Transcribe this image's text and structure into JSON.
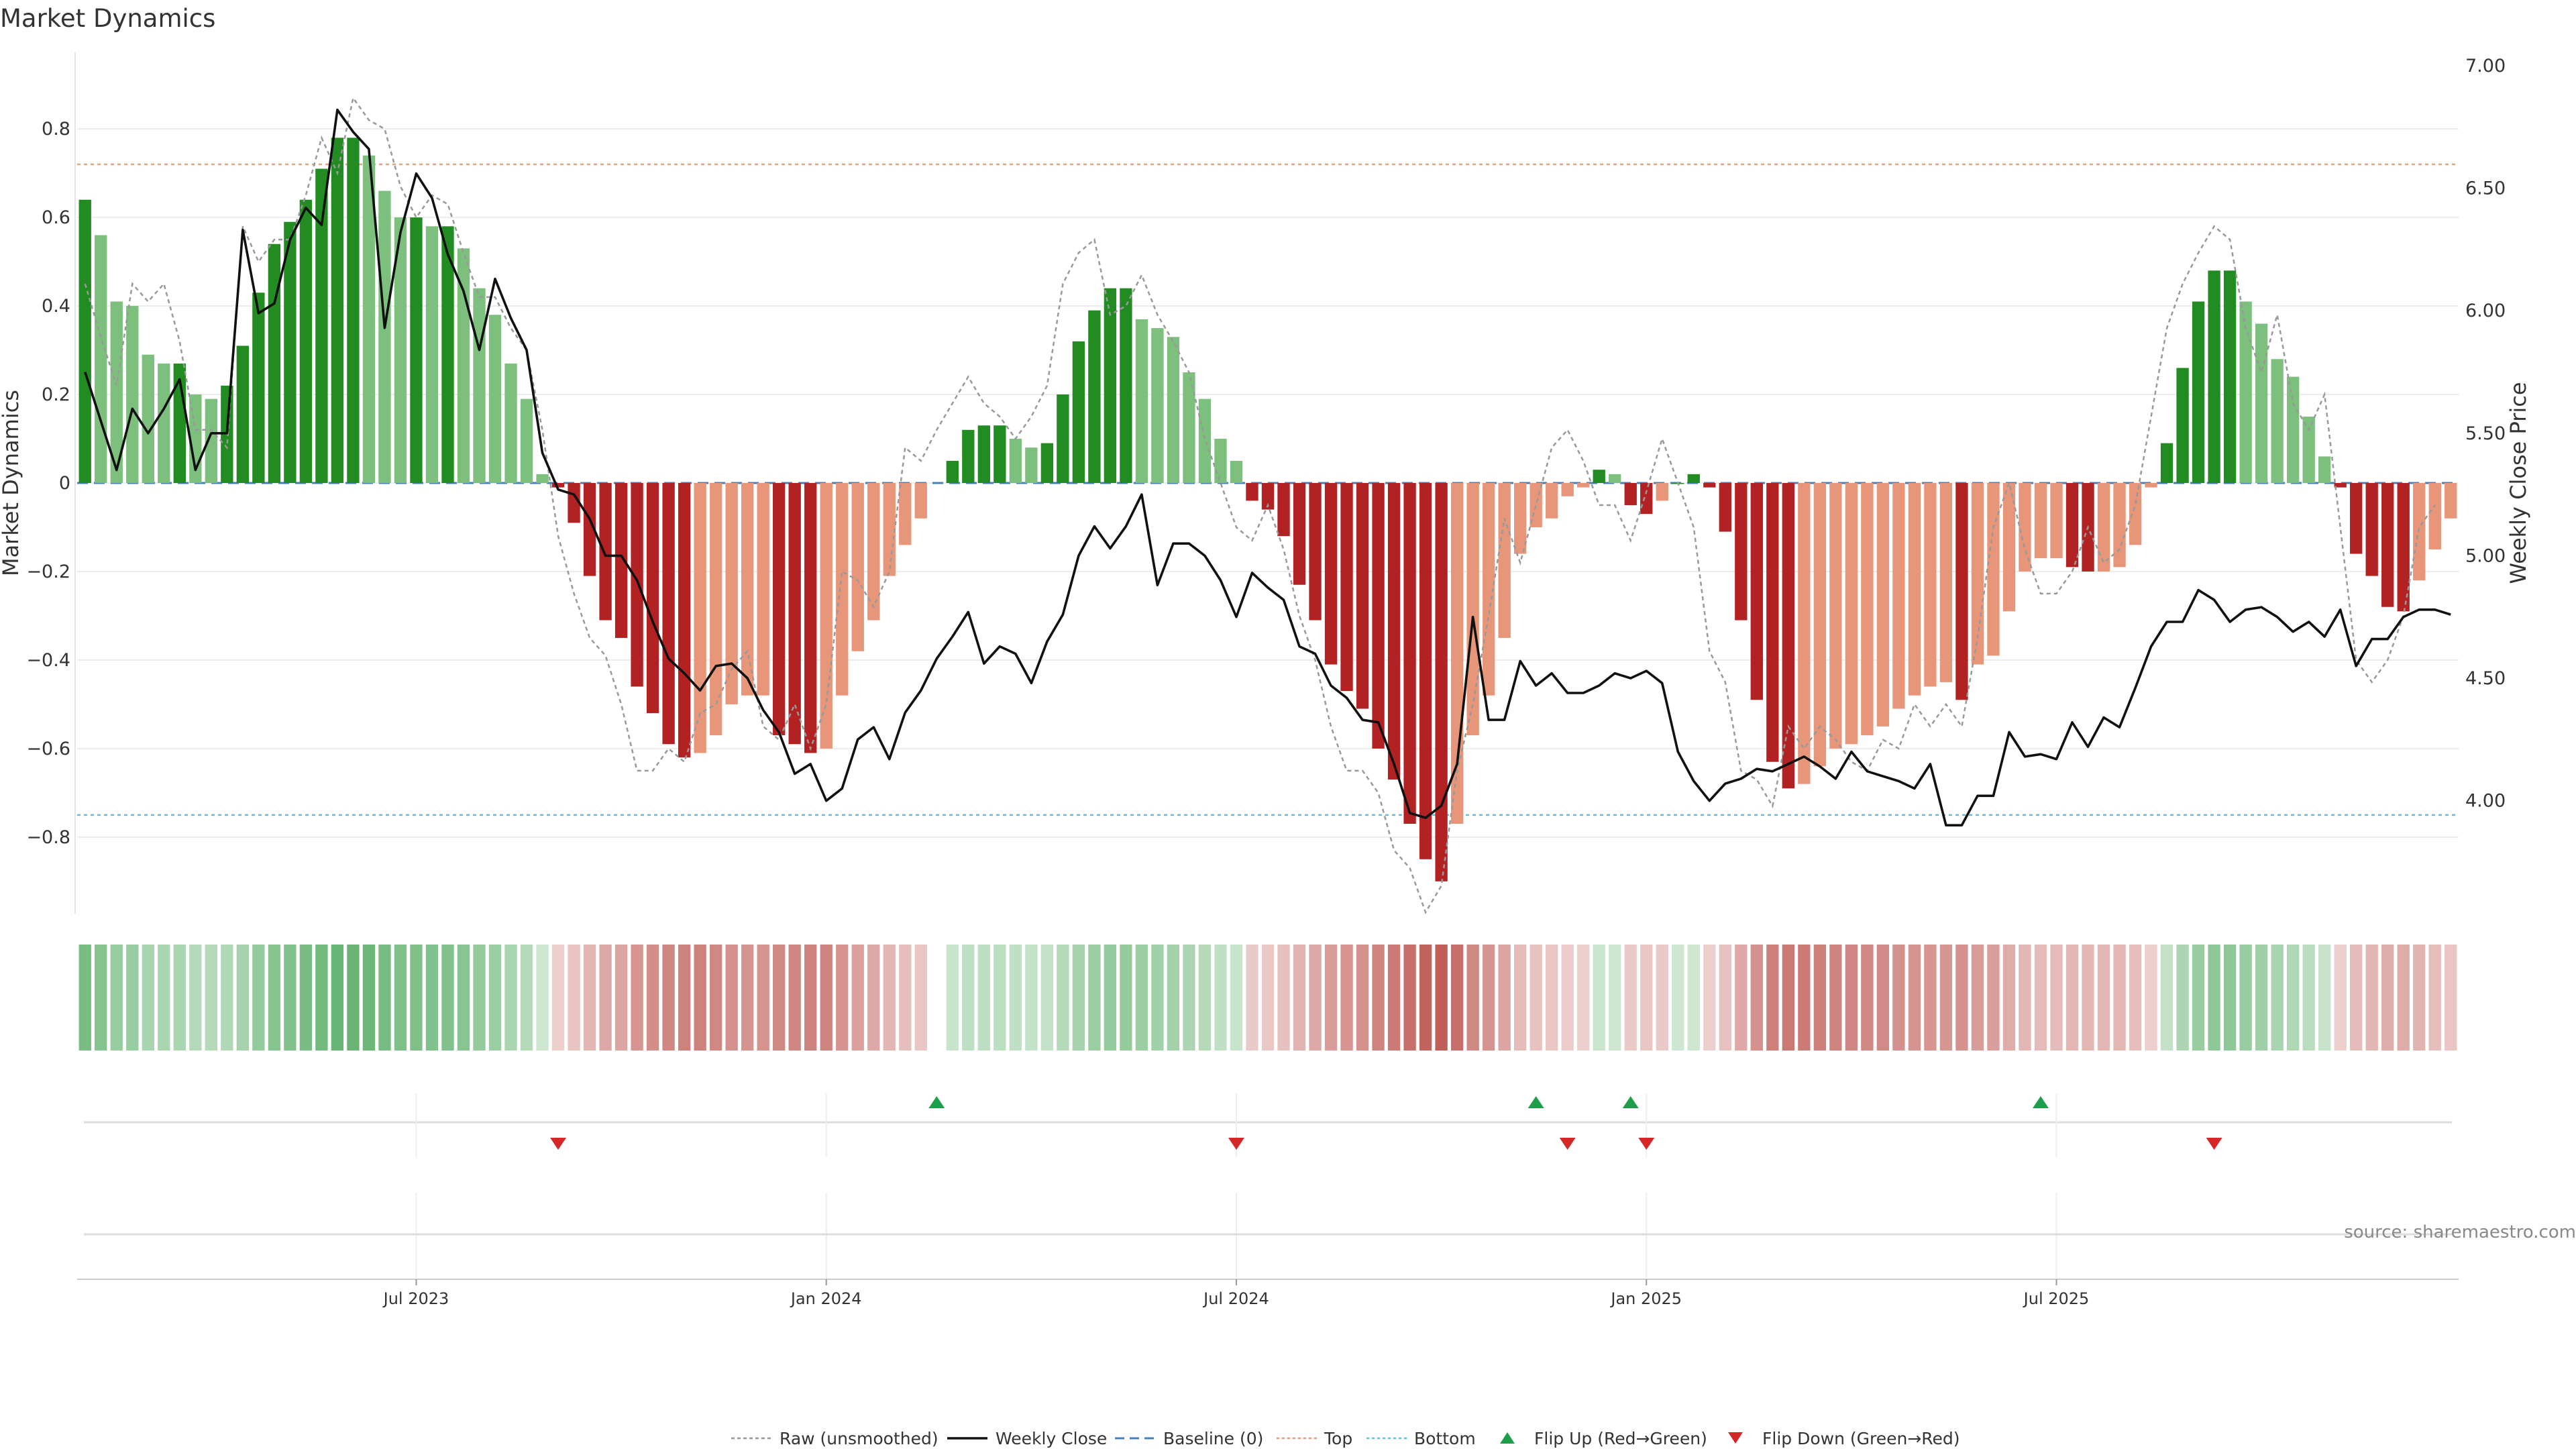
{
  "chart_data": {
    "title": "Market Dynamics",
    "type": "bar+line",
    "ylabel_left": "Market Dynamics",
    "ylabel_right": "Weekly Close Price",
    "ylim_left": [
      -0.97,
      0.97
    ],
    "ylim_right": [
      3.55,
      7.0
    ],
    "yticks_left": [
      -0.8,
      -0.6,
      -0.4,
      -0.2,
      0,
      0.2,
      0.4,
      0.6,
      0.8
    ],
    "ytick_labels_left": [
      "−0.8",
      "−0.6",
      "−0.4",
      "−0.2",
      "0",
      "0.2",
      "0.4",
      "0.6",
      "0.8"
    ],
    "yticks_right": [
      4.0,
      4.5,
      5.0,
      5.5,
      6.0,
      6.5,
      7.0
    ],
    "ytick_labels_right": [
      "4.00",
      "4.50",
      "5.00",
      "5.50",
      "6.00",
      "6.50",
      "7.00"
    ],
    "x_tick_labels": [
      "Jul 2023",
      "Jan 2024",
      "Jul 2024",
      "Jan 2025",
      "Jul 2025"
    ],
    "x_tick_weeks": [
      21,
      47,
      73,
      99,
      125
    ],
    "top_level": 0.72,
    "bottom_level": -0.75,
    "baseline": 0,
    "momentum": [
      0.64,
      0.56,
      0.41,
      0.4,
      0.29,
      0.27,
      0.27,
      0.2,
      0.19,
      0.22,
      0.31,
      0.43,
      0.54,
      0.59,
      0.64,
      0.71,
      0.78,
      0.78,
      0.74,
      0.66,
      0.6,
      0.6,
      0.58,
      0.58,
      0.53,
      0.44,
      0.38,
      0.27,
      0.19,
      0.02,
      -0.01,
      -0.09,
      -0.21,
      -0.31,
      -0.35,
      -0.46,
      -0.52,
      -0.59,
      -0.62,
      -0.61,
      -0.57,
      -0.5,
      -0.48,
      -0.48,
      -0.57,
      -0.59,
      -0.61,
      -0.6,
      -0.48,
      -0.38,
      -0.31,
      -0.21,
      -0.14,
      -0.08,
      null,
      0.05,
      0.12,
      0.13,
      0.13,
      0.1,
      0.08,
      0.09,
      0.2,
      0.32,
      0.39,
      0.44,
      0.44,
      0.37,
      0.35,
      0.33,
      0.25,
      0.19,
      0.1,
      0.05,
      -0.04,
      -0.06,
      -0.12,
      -0.23,
      -0.31,
      -0.41,
      -0.47,
      -0.51,
      -0.6,
      -0.67,
      -0.77,
      -0.85,
      -0.9,
      -0.77,
      -0.57,
      -0.48,
      -0.35,
      -0.16,
      -0.1,
      -0.08,
      -0.03,
      -0.01,
      0.03,
      0.02,
      -0.05,
      -0.07,
      -0.04,
      0.0,
      0.02,
      -0.01,
      -0.11,
      -0.31,
      -0.49,
      -0.63,
      -0.69,
      -0.68,
      -0.64,
      -0.6,
      -0.59,
      -0.57,
      -0.55,
      -0.51,
      -0.48,
      -0.46,
      -0.45,
      -0.49,
      -0.41,
      -0.39,
      -0.29,
      -0.2,
      -0.17,
      -0.17,
      -0.19,
      -0.2,
      -0.2,
      -0.19,
      -0.14,
      -0.01,
      0.09,
      0.26,
      0.41,
      0.48,
      0.48,
      0.41,
      0.36,
      0.28,
      0.24,
      0.15,
      0.06,
      -0.01,
      -0.16,
      -0.21,
      -0.28,
      -0.29,
      -0.22,
      -0.15,
      -0.08
    ],
    "raw": [
      0.45,
      0.33,
      0.22,
      0.45,
      0.41,
      0.45,
      0.32,
      0.12,
      0.12,
      0.08,
      0.58,
      0.5,
      0.55,
      0.55,
      0.65,
      0.78,
      0.7,
      0.87,
      0.82,
      0.8,
      0.67,
      0.6,
      0.65,
      0.63,
      0.52,
      0.42,
      0.42,
      0.35,
      0.3,
      0.12,
      -0.12,
      -0.25,
      -0.35,
      -0.39,
      -0.5,
      -0.65,
      -0.65,
      -0.6,
      -0.63,
      -0.52,
      -0.5,
      -0.42,
      -0.38,
      -0.55,
      -0.58,
      -0.5,
      -0.6,
      -0.5,
      -0.2,
      -0.22,
      -0.28,
      -0.2,
      0.08,
      0.05,
      0.12,
      0.18,
      0.24,
      0.18,
      0.15,
      0.1,
      0.15,
      0.22,
      0.45,
      0.52,
      0.55,
      0.38,
      0.4,
      0.47,
      0.38,
      0.32,
      0.25,
      0.1,
      0.0,
      -0.1,
      -0.13,
      -0.05,
      -0.15,
      -0.3,
      -0.4,
      -0.55,
      -0.65,
      -0.65,
      -0.7,
      -0.83,
      -0.87,
      -0.97,
      -0.91,
      -0.65,
      -0.5,
      -0.3,
      -0.08,
      -0.18,
      -0.05,
      0.08,
      0.12,
      0.05,
      -0.05,
      -0.05,
      -0.13,
      -0.02,
      0.1,
      0.0,
      -0.1,
      -0.38,
      -0.45,
      -0.65,
      -0.67,
      -0.73,
      -0.55,
      -0.6,
      -0.55,
      -0.58,
      -0.63,
      -0.65,
      -0.58,
      -0.6,
      -0.5,
      -0.55,
      -0.5,
      -0.55,
      -0.35,
      -0.1,
      0.0,
      -0.15,
      -0.25,
      -0.25,
      -0.2,
      -0.1,
      -0.18,
      -0.15,
      -0.05,
      0.15,
      0.35,
      0.45,
      0.52,
      0.58,
      0.55,
      0.35,
      0.25,
      0.38,
      0.18,
      0.12,
      0.2,
      -0.1,
      -0.4,
      -0.45,
      -0.4,
      -0.3,
      -0.1,
      -0.05
    ],
    "weekly_close": [
      5.75,
      5.55,
      5.35,
      5.6,
      5.5,
      5.6,
      5.72,
      5.35,
      5.5,
      5.5,
      6.33,
      5.99,
      6.03,
      6.29,
      6.42,
      6.35,
      6.82,
      6.73,
      6.66,
      5.93,
      6.32,
      6.56,
      6.46,
      6.23,
      6.08,
      5.84,
      6.13,
      5.97,
      5.84,
      5.42,
      5.27,
      5.25,
      5.15,
      5.0,
      5.0,
      4.9,
      4.73,
      4.58,
      4.52,
      4.45,
      4.55,
      4.56,
      4.5,
      4.37,
      4.28,
      4.11,
      4.15,
      4.0,
      4.05,
      4.25,
      4.3,
      4.17,
      4.36,
      4.45,
      4.58,
      4.67,
      4.77,
      4.56,
      4.63,
      4.6,
      4.48,
      4.65,
      4.76,
      5.0,
      5.12,
      5.03,
      5.12,
      5.25,
      4.88,
      5.05,
      5.05,
      5.0,
      4.9,
      4.75,
      4.93,
      4.87,
      4.82,
      4.63,
      4.6,
      4.47,
      4.42,
      4.33,
      4.32,
      4.15,
      3.95,
      3.93,
      3.98,
      4.15,
      4.75,
      4.33,
      4.33,
      4.57,
      4.47,
      4.52,
      4.44,
      4.44,
      4.47,
      4.52,
      4.5,
      4.53,
      4.48,
      4.2,
      4.08,
      4.0,
      4.07,
      4.09,
      4.13,
      4.12,
      4.15,
      4.18,
      4.14,
      4.09,
      4.2,
      4.12,
      4.1,
      4.08,
      4.05,
      4.15,
      3.9,
      3.9,
      4.02,
      4.02,
      4.28,
      4.18,
      4.19,
      4.17,
      4.32,
      4.22,
      4.34,
      4.3,
      4.46,
      4.63,
      4.73,
      4.73,
      4.86,
      4.82,
      4.73,
      4.78,
      4.79,
      4.75,
      4.69,
      4.73,
      4.67,
      4.78,
      4.55,
      4.66,
      4.66,
      4.75,
      4.78,
      4.78,
      4.76
    ],
    "flip_up_weeks": [
      54,
      92,
      98,
      124
    ],
    "flip_down_weeks": [
      30,
      73,
      94,
      99,
      135
    ],
    "series_colors": {
      "strong_green": "#228B22",
      "light_green": "#7DBF7D",
      "strong_red": "#B22222",
      "light_red": "#E8967A",
      "raw": "#999999",
      "close": "#111111",
      "baseline": "#4A7FB5",
      "top": "#E8A07A",
      "bottom": "#5BC0DE",
      "flip_up": "#1E9E4A",
      "flip_down": "#D62728"
    },
    "legend": [
      "Raw (unsmoothed)",
      "Weekly Close",
      "Baseline (0)",
      "Top",
      "Bottom",
      "Flip Up (Red→Green)",
      "Flip Down (Green→Red)"
    ],
    "source": "source: sharemaestro.com"
  }
}
